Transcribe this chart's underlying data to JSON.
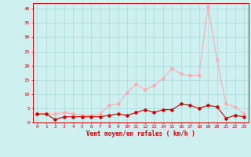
{
  "x": [
    0,
    1,
    2,
    3,
    4,
    5,
    6,
    7,
    8,
    9,
    10,
    11,
    12,
    13,
    14,
    15,
    16,
    17,
    18,
    19,
    20,
    21,
    22,
    23
  ],
  "y_rafales": [
    3.0,
    3.0,
    3.0,
    3.5,
    3.0,
    2.5,
    2.5,
    3.0,
    6.0,
    6.5,
    10.5,
    13.5,
    11.5,
    13.0,
    15.5,
    19.0,
    17.0,
    16.5,
    16.5,
    41.0,
    22.0,
    6.5,
    5.5,
    3.0
  ],
  "y_moyen": [
    3.0,
    3.0,
    1.0,
    2.0,
    2.0,
    2.0,
    2.0,
    2.0,
    2.5,
    3.0,
    2.5,
    3.5,
    4.5,
    3.5,
    4.5,
    4.5,
    6.5,
    6.0,
    5.0,
    6.0,
    5.5,
    1.5,
    2.5,
    2.0
  ],
  "color_rafales": "#ffaaaa",
  "color_moyen": "#cc0000",
  "background_color": "#cff0f0",
  "grid_color": "#aadddd",
  "xlabel": "Vent moyen/en rafales ( km/h )",
  "xlabel_color": "#cc0000",
  "tick_color": "#cc0000",
  "ylim": [
    0,
    42
  ],
  "yticks": [
    0,
    5,
    10,
    15,
    20,
    25,
    30,
    35,
    40
  ],
  "xlim": [
    -0.5,
    23.5
  ]
}
